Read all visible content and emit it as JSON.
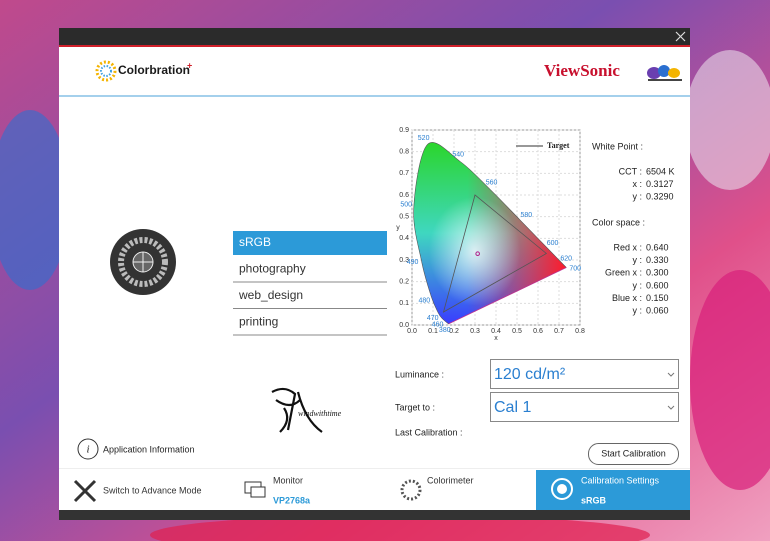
{
  "header": {
    "logo": "Colorbration",
    "logo_mark": "+",
    "brand": "ViewSonic"
  },
  "presets": {
    "items": [
      "sRGB",
      "photography",
      "web_design",
      "printing"
    ],
    "selected": 0
  },
  "chromaticity_chart": {
    "type": "chromaticity",
    "legend": "Target",
    "xlabel": "x",
    "ylabel": "y",
    "xlim": [
      0,
      0.8
    ],
    "ylim": [
      0,
      0.9
    ],
    "xticks": [
      {
        "value": 0,
        "label": "0.0"
      },
      0.1,
      0.2,
      0.3,
      0.4,
      0.5,
      0.6,
      0.7,
      {
        "value": 0.8,
        "label": "0.8"
      }
    ],
    "yticks": [
      {
        "value": 0,
        "label": "0.0"
      },
      0.1,
      0.2,
      0.3,
      0.4,
      0.5,
      0.6,
      0.7,
      0.8,
      0.9
    ],
    "grid": true,
    "locus": [
      {
        "nm": 380,
        "x": 0.1741,
        "y": 0.005
      },
      {
        "nm": 460,
        "x": 0.144,
        "y": 0.0297
      },
      {
        "nm": 470,
        "x": 0.1241,
        "y": 0.0578
      },
      {
        "nm": 480,
        "x": 0.0913,
        "y": 0.1327
      },
      {
        "nm": 490,
        "x": 0.0454,
        "y": 0.295
      },
      {
        "nm": 500,
        "x": 0.0082,
        "y": 0.5384
      },
      {
        "nm": 520,
        "x": 0.0743,
        "y": 0.8338
      },
      {
        "nm": 540,
        "x": 0.2296,
        "y": 0.7543
      },
      {
        "nm": 560,
        "x": 0.3731,
        "y": 0.6245
      },
      {
        "nm": 580,
        "x": 0.5125,
        "y": 0.4866
      },
      {
        "nm": 600,
        "x": 0.627,
        "y": 0.3725
      },
      {
        "nm": 620,
        "x": 0.6915,
        "y": 0.3083
      },
      {
        "nm": 700,
        "x": 0.7347,
        "y": 0.2653
      }
    ]
  },
  "white_point": {
    "title": "White Point :",
    "rows": [
      {
        "label": "CCT :",
        "value": {
          "value": 6504,
          "label": "6504 K"
        }
      },
      {
        "label": "x :",
        "value": {
          "value": 0.3127,
          "label": "0.3127"
        }
      },
      {
        "label": "y :",
        "value": {
          "value": 0.329,
          "label": "0.3290"
        }
      }
    ]
  },
  "color_space": {
    "title": "Color space :",
    "primaries": [
      {
        "label": "Red x :",
        "x": {
          "value": 0.64,
          "label": "0.640"
        },
        "y_label": "y :",
        "y": {
          "value": 0.33,
          "label": "0.330"
        }
      },
      {
        "label": "Green x :",
        "x": {
          "value": 0.3,
          "label": "0.300"
        },
        "y_label": "y :",
        "y": {
          "value": 0.6,
          "label": "0.600"
        }
      },
      {
        "label": "Blue x :",
        "x": {
          "value": 0.15,
          "label": "0.150"
        },
        "y_label": "y :",
        "y": {
          "value": 0.06,
          "label": "0.060"
        }
      }
    ]
  },
  "luminance": {
    "label": "Luminance :",
    "value": "120 cd/m²"
  },
  "target": {
    "label": "Target to :",
    "value": "Cal 1"
  },
  "last_calibration": "Last Calibration :",
  "start_button": "Start Calibration",
  "signature": "windwithtime",
  "app_info": "Application Information",
  "nav": {
    "items": [
      {
        "title": "Switch to Advance Mode"
      },
      {
        "title": "Monitor",
        "detail": "VP2768a"
      },
      {
        "title": "Colorimeter"
      },
      {
        "title": "Calibration Settings",
        "detail": "sRGB"
      }
    ],
    "active": 3
  }
}
